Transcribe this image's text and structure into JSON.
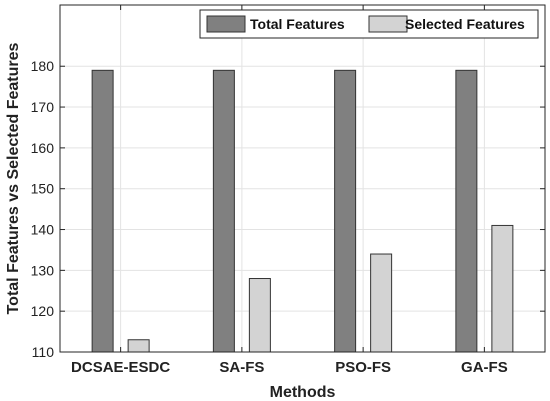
{
  "chart_data": {
    "type": "bar",
    "categories": [
      "DCSAE-ESDC",
      "SA-FS",
      "PSO-FS",
      "GA-FS"
    ],
    "series": [
      {
        "name": "Total Features",
        "values": [
          179,
          179,
          179,
          179
        ],
        "color": "#808080"
      },
      {
        "name": "Selected Features",
        "values": [
          113,
          128,
          134,
          141
        ],
        "color": "#d3d3d3"
      }
    ],
    "title": "",
    "xlabel": "Methods",
    "ylabel": "Total Features vs Selected Features",
    "ylim": [
      110,
      195
    ],
    "yticks": [
      110,
      120,
      130,
      140,
      150,
      160,
      170,
      180
    ],
    "grid": true,
    "legend_position": "top-right"
  }
}
